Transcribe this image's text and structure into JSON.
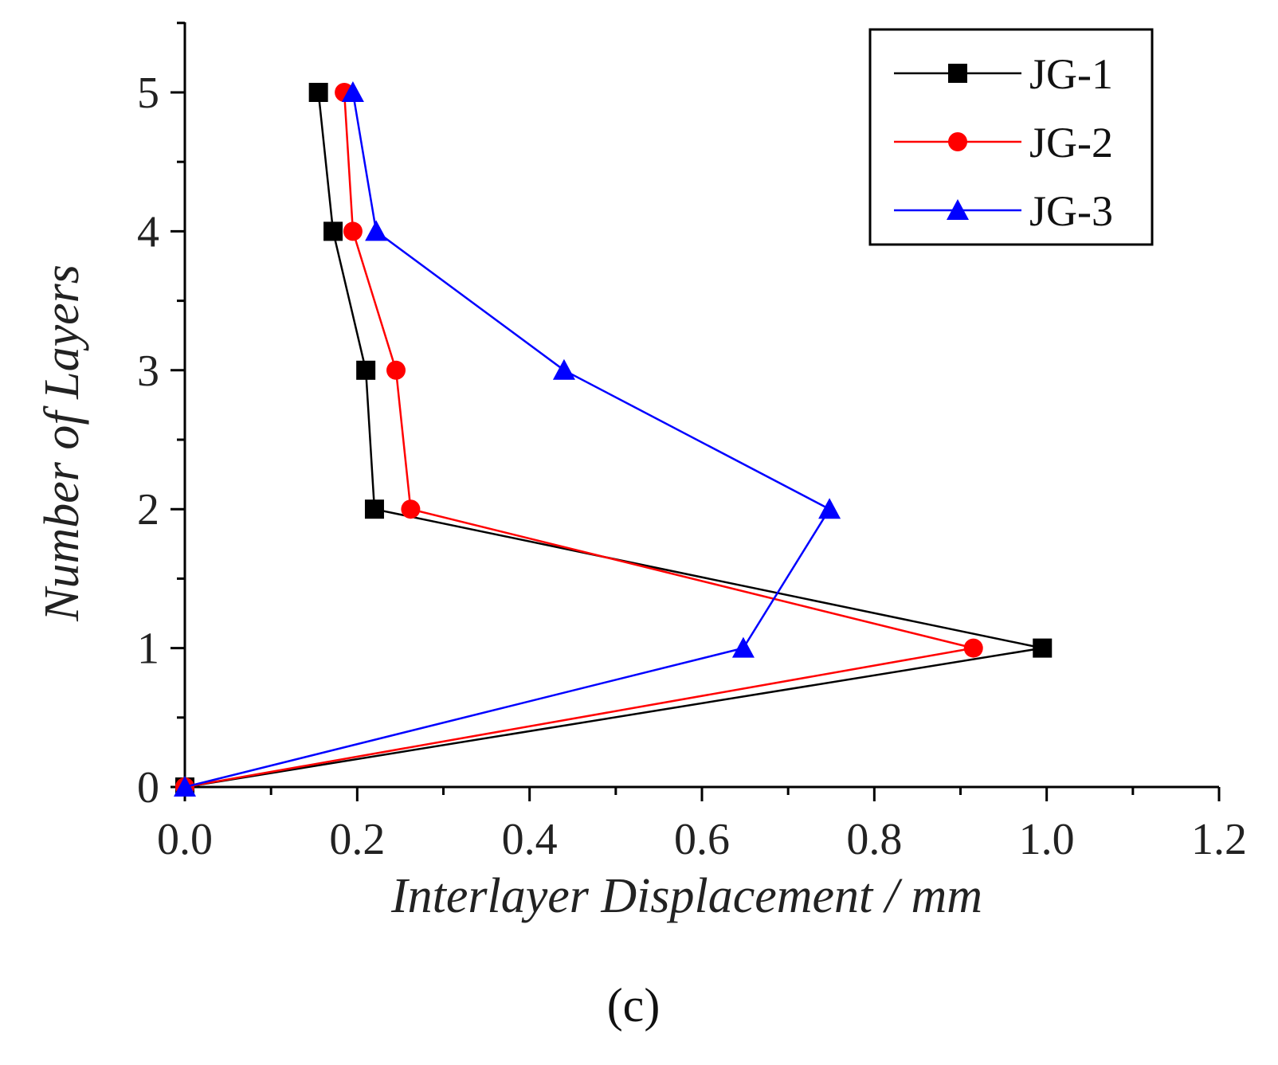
{
  "chart_data": {
    "type": "line",
    "title": "",
    "xlabel": "Interlayer Displacement / mm",
    "ylabel": "Number of Layers",
    "xlim": [
      0.0,
      1.2
    ],
    "ylim": [
      0,
      5.5
    ],
    "x_ticks": [
      "0.0",
      "0.2",
      "0.4",
      "0.6",
      "0.8",
      "1.0",
      "1.2"
    ],
    "x_tick_values": [
      0.0,
      0.2,
      0.4,
      0.6,
      0.8,
      1.0,
      1.2
    ],
    "y_ticks": [
      "0",
      "1",
      "2",
      "3",
      "4",
      "5"
    ],
    "y_tick_values": [
      0,
      1,
      2,
      3,
      4,
      5
    ],
    "grid": false,
    "legend_position": "top-right",
    "series": [
      {
        "name": "JG-1",
        "color": "#000000",
        "marker": "square",
        "x": [
          0.0,
          0.995,
          0.22,
          0.21,
          0.172,
          0.155
        ],
        "y": [
          0,
          1,
          2,
          3,
          4,
          5
        ]
      },
      {
        "name": "JG-2",
        "color": "#ff0000",
        "marker": "circle",
        "x": [
          0.0,
          0.915,
          0.262,
          0.245,
          0.195,
          0.185
        ],
        "y": [
          0,
          1,
          2,
          3,
          4,
          5
        ]
      },
      {
        "name": "JG-3",
        "color": "#0000ff",
        "marker": "triangle",
        "x": [
          0.0,
          0.648,
          0.748,
          0.44,
          0.222,
          0.195
        ],
        "y": [
          0,
          1,
          2,
          3,
          4,
          5
        ]
      }
    ]
  },
  "caption": "(c)"
}
